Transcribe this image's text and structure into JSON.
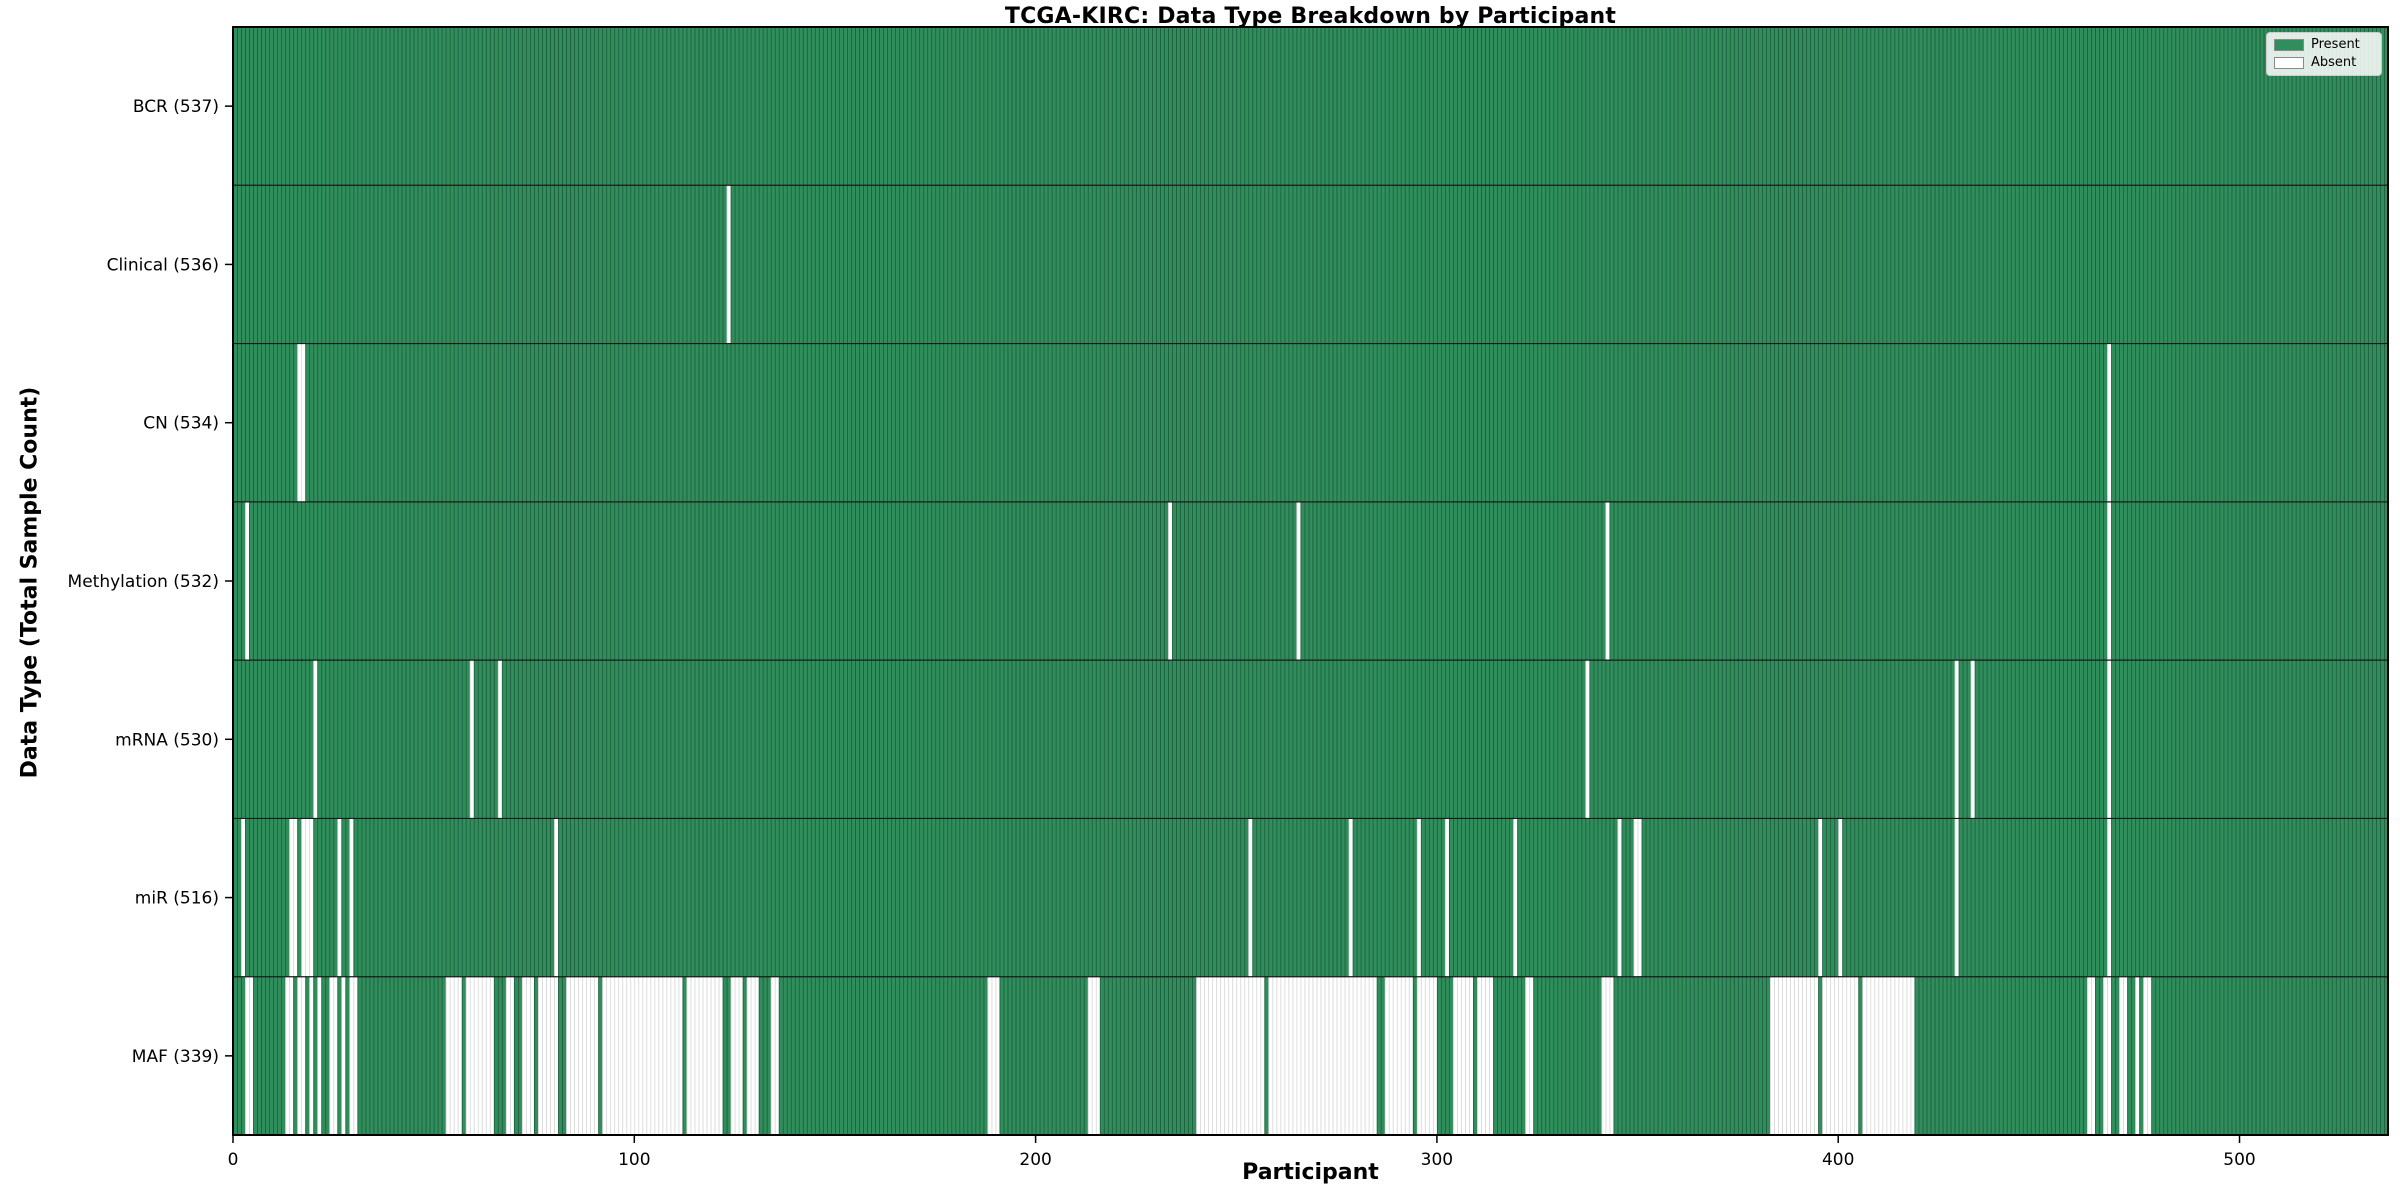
{
  "figure": {
    "background_color": "#ffffff",
    "plot_border_color": "#000000"
  },
  "chart_data": {
    "type": "heatmap",
    "title": "TCGA-KIRC: Data Type Breakdown by Participant",
    "xlabel": "Participant",
    "ylabel": "Data Type (Total Sample Count)",
    "x_ticks": [
      0,
      100,
      200,
      300,
      400,
      500
    ],
    "xlim": [
      0,
      537
    ],
    "n_participants": 537,
    "grid": false,
    "legend_position": "upper right",
    "legend": [
      {
        "label": "Present",
        "color": "#2f8e5b"
      },
      {
        "label": "Absent",
        "color": "#ffffff"
      }
    ],
    "present_color": "#2f8e5b",
    "present_edge_color": "#1f5f3e",
    "absent_color": "#ffffff",
    "absent_edge_color": "#d9d9d9",
    "rows": [
      {
        "data_type": "BCR",
        "label": "BCR (537)",
        "present_count": 537,
        "absent_count": 0,
        "absent_ranges": []
      },
      {
        "data_type": "Clinical",
        "label": "Clinical (536)",
        "present_count": 536,
        "absent_count": 1,
        "absent_ranges": [
          [
            123,
            123
          ]
        ]
      },
      {
        "data_type": "CN",
        "label": "CN (534)",
        "present_count": 534,
        "absent_count": 3,
        "absent_ranges": [
          [
            16,
            17
          ],
          [
            467,
            467
          ]
        ]
      },
      {
        "data_type": "Methylation",
        "label": "Methylation (532)",
        "present_count": 532,
        "absent_count": 5,
        "absent_ranges": [
          [
            3,
            3
          ],
          [
            233,
            233
          ],
          [
            265,
            265
          ],
          [
            342,
            342
          ],
          [
            467,
            467
          ]
        ]
      },
      {
        "data_type": "mRNA",
        "label": "mRNA (530)",
        "present_count": 530,
        "absent_count": 7,
        "absent_ranges": [
          [
            20,
            20
          ],
          [
            59,
            59
          ],
          [
            66,
            66
          ],
          [
            337,
            337
          ],
          [
            429,
            429
          ],
          [
            433,
            433
          ],
          [
            467,
            467
          ]
        ]
      },
      {
        "data_type": "miR",
        "label": "miR (516)",
        "present_count": 516,
        "absent_count": 21,
        "absent_ranges": [
          [
            2,
            2
          ],
          [
            14,
            15
          ],
          [
            17,
            19
          ],
          [
            26,
            26
          ],
          [
            29,
            29
          ],
          [
            80,
            80
          ],
          [
            253,
            253
          ],
          [
            278,
            278
          ],
          [
            295,
            295
          ],
          [
            302,
            302
          ],
          [
            319,
            319
          ],
          [
            345,
            345
          ],
          [
            349,
            350
          ],
          [
            395,
            395
          ],
          [
            400,
            400
          ],
          [
            429,
            429
          ],
          [
            467,
            467
          ]
        ]
      },
      {
        "data_type": "MAF",
        "label": "MAF (339)",
        "present_count": 339,
        "absent_count": 198,
        "absent_ranges": [
          [
            3,
            4
          ],
          [
            13,
            14
          ],
          [
            16,
            17
          ],
          [
            19,
            19
          ],
          [
            21,
            21
          ],
          [
            24,
            25
          ],
          [
            27,
            27
          ],
          [
            29,
            30
          ],
          [
            53,
            56
          ],
          [
            58,
            64
          ],
          [
            68,
            69
          ],
          [
            72,
            74
          ],
          [
            76,
            80
          ],
          [
            83,
            90
          ],
          [
            92,
            111
          ],
          [
            113,
            121
          ],
          [
            124,
            126
          ],
          [
            128,
            130
          ],
          [
            134,
            135
          ],
          [
            188,
            190
          ],
          [
            213,
            215
          ],
          [
            240,
            256
          ],
          [
            258,
            284
          ],
          [
            287,
            293
          ],
          [
            295,
            299
          ],
          [
            304,
            308
          ],
          [
            310,
            313
          ],
          [
            322,
            323
          ],
          [
            341,
            343
          ],
          [
            383,
            394
          ],
          [
            396,
            404
          ],
          [
            406,
            418
          ],
          [
            462,
            463
          ],
          [
            466,
            467
          ],
          [
            470,
            471
          ],
          [
            474,
            474
          ],
          [
            476,
            477
          ]
        ]
      }
    ]
  }
}
